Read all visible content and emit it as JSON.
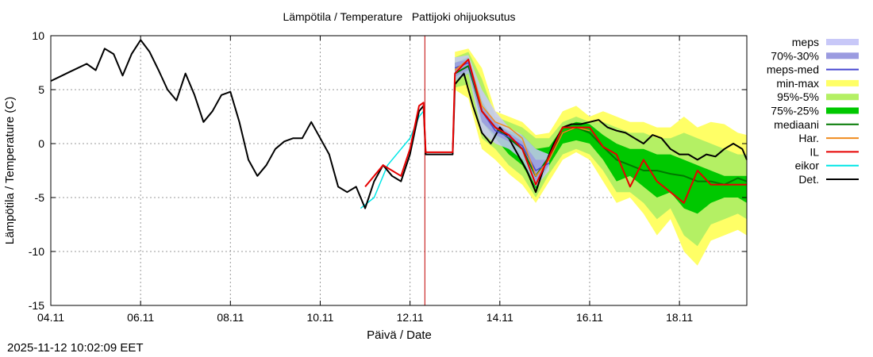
{
  "chart_data": {
    "type": "line",
    "title": "Lämpötila / Temperature   Pattijoki ohijuoksutus",
    "xlabel": "Päivä / Date",
    "ylabel": "Lämpötila / Temperature (C)",
    "x_units": "days since 04.11 00:00",
    "xlim": [
      0,
      15.5
    ],
    "ylim": [
      -15,
      10
    ],
    "yticks": [
      10,
      5,
      0,
      -5,
      -10,
      -15
    ],
    "xticks": [
      {
        "x": 0,
        "label": "04.11"
      },
      {
        "x": 2,
        "label": "06.11"
      },
      {
        "x": 4,
        "label": "08.11"
      },
      {
        "x": 6,
        "label": "10.11"
      },
      {
        "x": 8,
        "label": "12.11"
      },
      {
        "x": 10,
        "label": "14.11"
      },
      {
        "x": 12,
        "label": "16.11"
      },
      {
        "x": 14,
        "label": "18.11"
      }
    ],
    "grid": true,
    "forecast_start_x": 8.33,
    "legend_position": "right",
    "legend": [
      {
        "label": "meps",
        "kind": "band",
        "color": "#c8c8f8"
      },
      {
        "label": "70%-30%",
        "kind": "band",
        "color": "#9b9be0"
      },
      {
        "label": "meps-med",
        "kind": "line",
        "color": "#4646d0"
      },
      {
        "label": "min-max",
        "kind": "band",
        "color": "#ffff66"
      },
      {
        "label": "95%-5%",
        "kind": "band",
        "color": "#b4f064"
      },
      {
        "label": "75%-25%",
        "kind": "band",
        "color": "#00c800"
      },
      {
        "label": "mediaani",
        "kind": "line",
        "color": "#007800"
      },
      {
        "label": "Har.",
        "kind": "line",
        "color": "#f08c1e"
      },
      {
        "label": "IL",
        "kind": "line",
        "color": "#e60000"
      },
      {
        "label": "eikor",
        "kind": "line",
        "color": "#00e6e6"
      },
      {
        "label": "Det.",
        "kind": "line",
        "color": "#000000"
      }
    ],
    "bands": {
      "min-max": {
        "x": [
          9.0,
          9.3,
          9.6,
          9.9,
          10.2,
          10.5,
          10.8,
          11.1,
          11.4,
          11.7,
          12.0,
          12.3,
          12.6,
          12.9,
          13.2,
          13.5,
          13.8,
          14.1,
          14.4,
          14.7,
          15.0,
          15.3,
          15.5
        ],
        "low": [
          5.0,
          4.2,
          -0.5,
          -1.5,
          -2.8,
          -3.8,
          -5.5,
          -3.5,
          -1.5,
          -0.8,
          -1.5,
          -3.5,
          -5.5,
          -5.0,
          -6.5,
          -8.5,
          -7.0,
          -10.0,
          -11.3,
          -9.0,
          -8.5,
          -8.0,
          -8.5
        ],
        "high": [
          8.5,
          8.8,
          7.0,
          3.0,
          2.5,
          2.0,
          0.8,
          1.0,
          3.0,
          3.5,
          2.5,
          3.0,
          2.5,
          2.0,
          2.0,
          1.5,
          1.5,
          2.5,
          1.5,
          2.0,
          1.8,
          1.0,
          0.8
        ]
      },
      "95%-5%": {
        "x": [
          9.0,
          9.3,
          9.6,
          9.9,
          10.2,
          10.5,
          10.8,
          11.1,
          11.4,
          11.7,
          12.0,
          12.3,
          12.6,
          12.9,
          13.2,
          13.5,
          13.8,
          14.1,
          14.4,
          14.7,
          15.0,
          15.3,
          15.5
        ],
        "low": [
          5.2,
          5.5,
          0.5,
          -0.5,
          -2.0,
          -3.0,
          -5.0,
          -2.8,
          -1.0,
          -0.5,
          -1.0,
          -2.5,
          -4.5,
          -4.5,
          -5.5,
          -7.0,
          -6.0,
          -8.5,
          -9.5,
          -7.5,
          -7.0,
          -6.5,
          -7.0
        ],
        "high": [
          8.0,
          8.5,
          6.0,
          2.5,
          2.0,
          1.5,
          0.5,
          0.5,
          2.0,
          2.5,
          2.0,
          2.0,
          1.5,
          1.0,
          1.0,
          0.5,
          0.5,
          1.0,
          0.5,
          0.0,
          -0.5,
          -1.0,
          -1.0
        ]
      },
      "75%-25%": {
        "x": [
          9.0,
          9.3,
          9.6,
          9.9,
          10.2,
          10.5,
          10.8,
          11.1,
          11.4,
          11.7,
          12.0,
          12.3,
          12.6,
          12.9,
          13.2,
          13.5,
          13.8,
          14.1,
          14.4,
          14.7,
          15.0,
          15.3,
          15.5
        ],
        "low": [
          5.8,
          6.5,
          2.0,
          0.5,
          -1.0,
          -2.0,
          -4.2,
          -2.0,
          0.0,
          0.3,
          0.0,
          -1.5,
          -3.5,
          -3.0,
          -4.0,
          -5.0,
          -4.5,
          -6.0,
          -6.5,
          -5.5,
          -5.0,
          -5.0,
          -5.5
        ],
        "high": [
          7.5,
          8.0,
          4.0,
          1.8,
          1.2,
          0.8,
          -0.5,
          -0.3,
          1.5,
          2.0,
          1.8,
          0.8,
          0.0,
          -0.5,
          -0.5,
          -1.0,
          -1.0,
          -1.5,
          -2.0,
          -2.5,
          -3.0,
          -3.0,
          -3.0
        ]
      },
      "meps": {
        "x": [
          9.0,
          9.3,
          9.6,
          9.9,
          10.2,
          10.5,
          10.8,
          11.1
        ],
        "low": [
          5.8,
          6.5,
          1.0,
          0.0,
          -0.5,
          -1.5,
          -4.0,
          -2.5
        ],
        "high": [
          8.0,
          8.2,
          5.0,
          3.0,
          1.5,
          0.8,
          -0.5,
          -1.0
        ]
      },
      "70%-30%": {
        "x": [
          9.0,
          9.3,
          9.6,
          9.9,
          10.2,
          10.5,
          10.8,
          11.1
        ],
        "low": [
          6.2,
          6.8,
          2.0,
          0.8,
          0.2,
          -0.5,
          -3.5,
          -2.0
        ],
        "high": [
          7.5,
          7.8,
          3.5,
          2.0,
          1.0,
          0.2,
          -1.5,
          -1.5
        ]
      }
    },
    "series": [
      {
        "name": "Det.",
        "color": "#000000",
        "width": 2,
        "x": [
          0.0,
          0.2,
          0.4,
          0.6,
          0.8,
          1.0,
          1.2,
          1.4,
          1.6,
          1.8,
          2.0,
          2.2,
          2.4,
          2.6,
          2.8,
          3.0,
          3.2,
          3.4,
          3.6,
          3.8,
          4.0,
          4.2,
          4.4,
          4.6,
          4.8,
          5.0,
          5.2,
          5.4,
          5.6,
          5.8,
          6.0,
          6.2,
          6.4,
          6.6,
          6.8,
          7.0,
          7.2,
          7.4,
          7.6,
          7.8,
          8.0,
          8.2,
          8.3,
          8.35,
          8.95,
          9.0,
          9.2,
          9.4,
          9.6,
          9.8,
          10.0,
          10.2,
          10.4,
          10.6,
          10.8,
          11.0,
          11.2,
          11.4,
          11.6,
          11.8,
          12.0,
          12.2,
          12.4,
          12.6,
          12.8,
          13.0,
          13.2,
          13.4,
          13.6,
          13.8,
          14.0,
          14.2,
          14.4,
          14.6,
          14.8,
          15.0,
          15.2,
          15.4,
          15.5
        ],
        "y": [
          5.8,
          6.2,
          6.6,
          7.0,
          7.4,
          6.8,
          8.8,
          8.3,
          6.3,
          8.3,
          9.6,
          8.5,
          6.8,
          5.0,
          4.0,
          6.5,
          4.5,
          2.0,
          3.0,
          4.5,
          4.8,
          2.0,
          -1.5,
          -3.0,
          -2.0,
          -0.5,
          0.2,
          0.5,
          0.5,
          2.0,
          0.5,
          -1.0,
          -4.0,
          -4.5,
          -4.0,
          -6.0,
          -3.5,
          -2.0,
          -3.0,
          -3.5,
          -1.0,
          3.0,
          3.5,
          -1.0,
          -1.0,
          5.5,
          6.5,
          3.5,
          1.0,
          0.0,
          1.5,
          0.5,
          -1.0,
          -2.5,
          -4.5,
          -2.0,
          0.0,
          1.5,
          1.8,
          1.8,
          2.0,
          2.2,
          1.5,
          1.2,
          1.0,
          0.5,
          0.0,
          0.8,
          0.5,
          -0.5,
          -1.0,
          -1.0,
          -1.5,
          -1.0,
          -1.2,
          -0.5,
          0.0,
          -0.5,
          -1.5
        ]
      },
      {
        "name": "mediaani",
        "color": "#007800",
        "width": 2,
        "x": [
          9.0,
          9.3,
          9.6,
          9.9,
          10.2,
          10.5,
          10.8,
          11.1,
          11.4,
          11.7,
          12.0,
          12.3,
          12.6,
          12.9,
          13.2,
          13.5,
          13.8,
          14.1,
          14.4,
          14.7,
          15.0,
          15.3,
          15.5
        ],
        "y": [
          6.5,
          7.2,
          3.0,
          1.5,
          0.5,
          -0.5,
          -3.0,
          -1.2,
          1.0,
          1.5,
          1.0,
          -0.3,
          -1.5,
          -2.0,
          -2.5,
          -2.5,
          -2.8,
          -3.0,
          -3.5,
          -3.5,
          -3.8,
          -3.2,
          -3.5
        ]
      },
      {
        "name": "meps-med",
        "color": "#4646d0",
        "width": 1.5,
        "x": [
          9.0,
          9.3,
          9.6,
          9.9,
          10.2,
          10.5,
          10.8,
          11.1
        ],
        "y": [
          7.0,
          7.5,
          3.0,
          1.2,
          0.6,
          -0.2,
          -2.5,
          -1.8
        ]
      },
      {
        "name": "Har.",
        "color": "#f08c1e",
        "width": 1.5,
        "x": [
          9.0,
          9.3,
          9.6,
          9.9,
          10.2,
          10.5,
          10.8,
          11.1,
          11.4,
          11.7,
          12.0
        ],
        "y": [
          6.8,
          7.8,
          3.5,
          2.0,
          1.5,
          0.5,
          -3.0,
          -1.5,
          1.0,
          1.5,
          1.2
        ]
      },
      {
        "name": "IL",
        "color": "#e60000",
        "width": 2,
        "x": [
          7.0,
          7.2,
          7.4,
          7.6,
          7.8,
          8.0,
          8.2,
          8.3,
          8.35,
          8.95,
          9.0,
          9.3,
          9.6,
          9.9,
          10.2,
          10.5,
          10.8,
          11.1,
          11.4,
          11.7,
          12.0,
          12.3,
          12.6,
          12.9,
          13.2,
          13.5,
          13.8,
          14.1,
          14.4,
          14.7,
          15.0,
          15.3,
          15.5
        ],
        "y": [
          -4.0,
          -3.0,
          -2.0,
          -2.5,
          -3.0,
          -0.5,
          3.5,
          3.8,
          -0.8,
          -0.8,
          6.5,
          7.8,
          3.0,
          1.5,
          0.8,
          -0.5,
          -3.8,
          -1.2,
          1.5,
          1.5,
          1.5,
          -0.3,
          -1.0,
          -4.0,
          -1.5,
          -3.5,
          -4.5,
          -5.5,
          -2.5,
          -3.8,
          -3.8,
          -3.8,
          -3.8
        ]
      },
      {
        "name": "eikor",
        "color": "#00e6e6",
        "width": 1.5,
        "x": [
          6.9,
          7.2,
          7.5,
          7.8,
          8.0,
          8.2,
          8.3
        ],
        "y": [
          -6.0,
          -5.0,
          -2.0,
          -0.5,
          0.5,
          2.5,
          3.0
        ]
      }
    ]
  },
  "timestamp": "2025-11-12 10:02:09 EET"
}
